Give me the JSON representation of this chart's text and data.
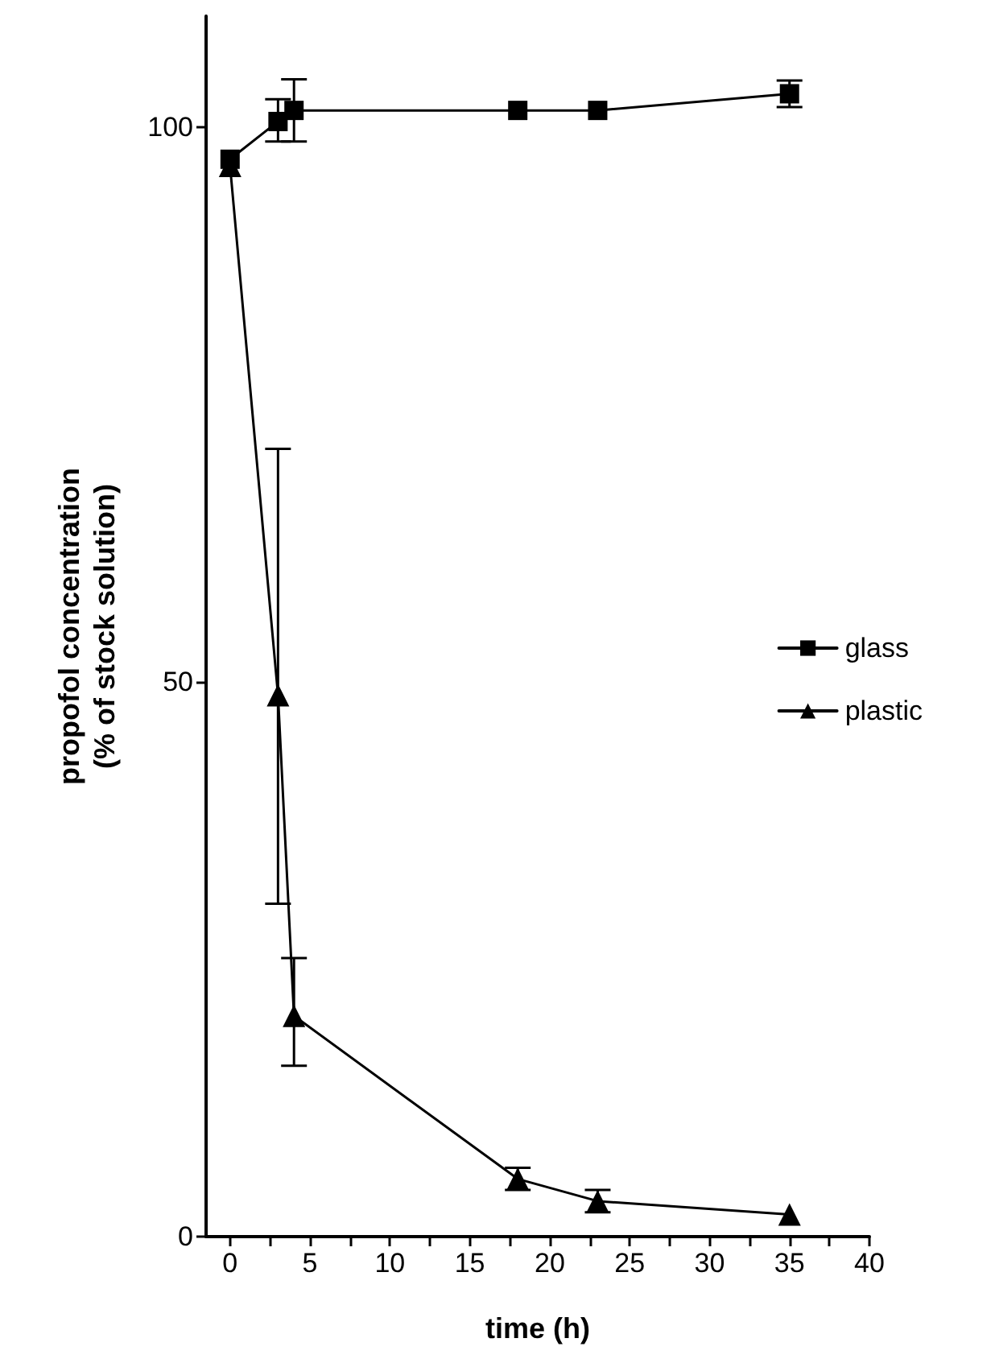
{
  "chart_data": {
    "type": "line",
    "xlabel": "time (h)",
    "ylabel": "propofol concentration\n(% of stock solution)",
    "x": [
      0,
      3,
      4,
      18,
      23,
      35
    ],
    "series": [
      {
        "name": "glass",
        "color": "#000000",
        "marker": "square",
        "values": [
          97.1,
          100.5,
          101.5,
          101.5,
          101.5,
          103
        ],
        "errors": [
          null,
          [
            98.7,
            102.5
          ],
          [
            98.7,
            104.3
          ],
          null,
          null,
          [
            101.8,
            104.2
          ]
        ]
      },
      {
        "name": "plastic",
        "color": "#000000",
        "marker": "triangle",
        "values": [
          96.5,
          48.8,
          19.9,
          5.2,
          3.2,
          2
        ],
        "errors": [
          null,
          [
            30,
            71
          ],
          [
            15.4,
            25.1
          ],
          [
            4.2,
            6.2
          ],
          [
            2.2,
            4.2
          ],
          null
        ]
      }
    ],
    "xlim": [
      -1.5,
      40
    ],
    "xticks": [
      0,
      {
        "value": 2.5,
        "label": null
      },
      5,
      {
        "value": 7.5,
        "label": null
      },
      10,
      {
        "value": 12.5,
        "label": null
      },
      15,
      {
        "value": 17.5,
        "label": null
      },
      20,
      {
        "value": 22.5,
        "label": null
      },
      25,
      {
        "value": 27.5,
        "label": null
      },
      30,
      {
        "value": 32.5,
        "label": null
      },
      35,
      {
        "value": 37.5,
        "label": null
      },
      40
    ],
    "ylim": [
      0,
      110
    ],
    "yticks": [
      0,
      50,
      100
    ],
    "legend": "right",
    "grid": false,
    "line_style": "solid"
  }
}
